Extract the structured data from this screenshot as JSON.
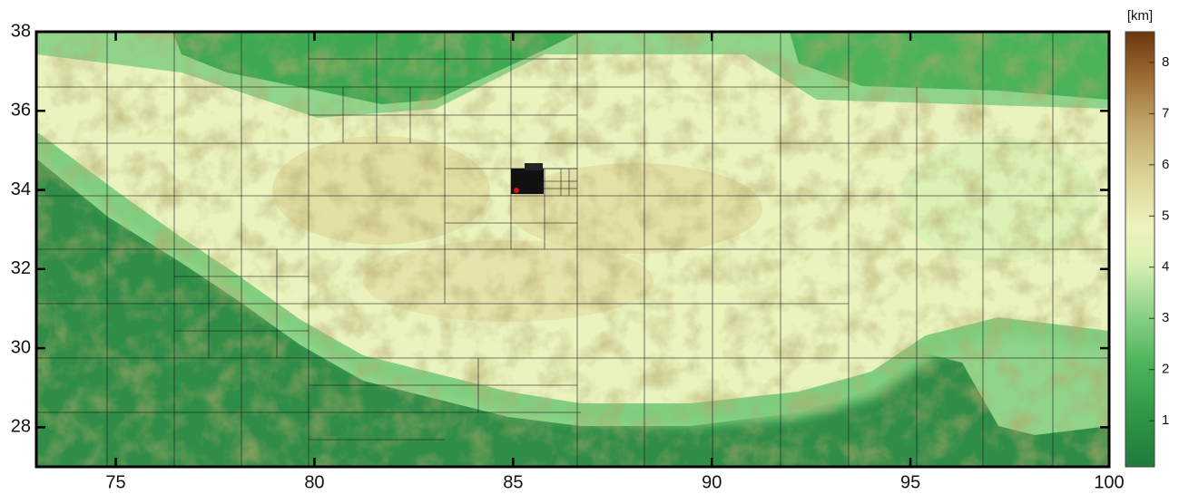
{
  "chart_data": {
    "type": "map",
    "xlim": [
      73,
      100
    ],
    "ylim": [
      27,
      38
    ],
    "xticks": [
      75,
      80,
      85,
      90,
      95,
      100
    ],
    "yticks": [
      28,
      30,
      32,
      34,
      36,
      38
    ],
    "colorbar": {
      "label": "[km]",
      "lim": [
        0.1,
        8.6
      ],
      "ticks": [
        1,
        2,
        3,
        4,
        5,
        6,
        7,
        8
      ]
    }
  }
}
